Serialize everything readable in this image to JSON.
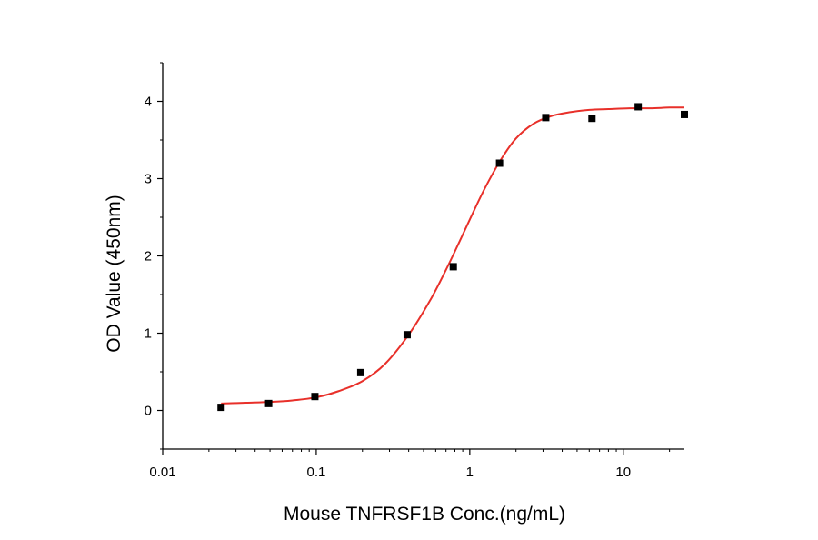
{
  "chart_data": {
    "type": "scatter",
    "title": "",
    "xlabel": "Mouse TNFRSF1B Conc.(ng/mL)",
    "ylabel": "OD Value (450nm)",
    "xscale": "log",
    "xlim": [
      0.01,
      25
    ],
    "ylim": [
      -0.5,
      4.5
    ],
    "xticks": [
      0.01,
      0.1,
      1,
      10
    ],
    "xtick_labels": [
      "0.01",
      "0.1",
      "1",
      "10"
    ],
    "yticks": [
      0,
      1,
      2,
      3,
      4
    ],
    "ytick_labels": [
      "0",
      "1",
      "2",
      "3",
      "4"
    ],
    "grid": false,
    "legend": "none",
    "series": [
      {
        "type": "scatter",
        "marker": "square",
        "color": "#000000",
        "x": [
          0.024,
          0.049,
          0.098,
          0.195,
          0.391,
          0.781,
          1.563,
          3.125,
          6.25,
          12.5,
          25
        ],
        "y": [
          0.04,
          0.09,
          0.18,
          0.49,
          0.98,
          1.86,
          3.2,
          3.79,
          3.78,
          3.93,
          3.83
        ]
      },
      {
        "type": "line",
        "color": "#e8302a",
        "x": [
          0.024,
          0.035,
          0.05,
          0.07,
          0.1,
          0.14,
          0.2,
          0.28,
          0.4,
          0.55,
          0.7,
          0.85,
          1.0,
          1.25,
          1.6,
          2.0,
          2.6,
          3.4,
          4.5,
          6.0,
          8.0,
          11.0,
          15.0,
          20.0,
          25.0
        ],
        "y": [
          0.09,
          0.1,
          0.11,
          0.13,
          0.17,
          0.25,
          0.38,
          0.6,
          0.98,
          1.42,
          1.82,
          2.17,
          2.47,
          2.87,
          3.25,
          3.52,
          3.71,
          3.81,
          3.86,
          3.89,
          3.9,
          3.91,
          3.91,
          3.92,
          3.92
        ]
      }
    ]
  }
}
